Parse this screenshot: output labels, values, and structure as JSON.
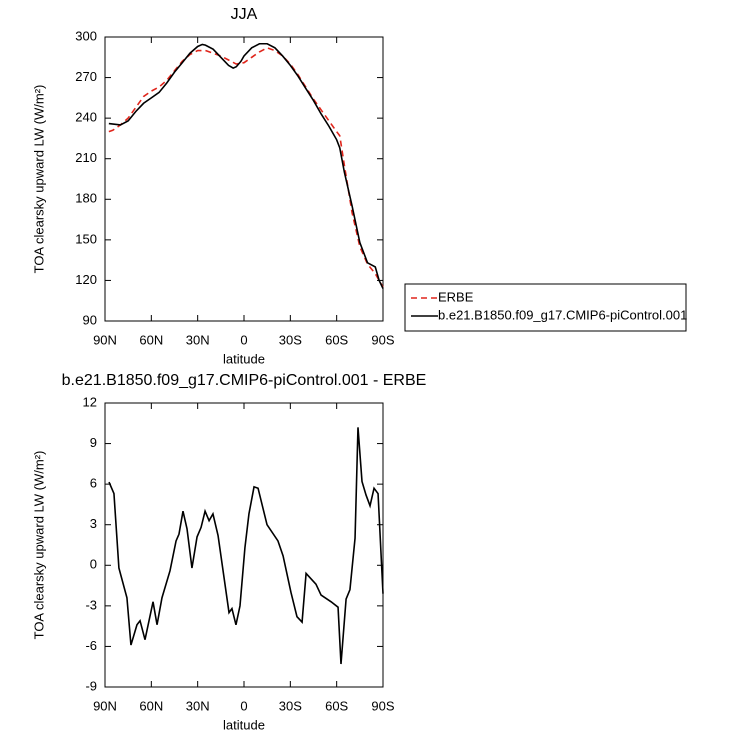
{
  "chart_data": [
    {
      "type": "line",
      "title": "JJA",
      "x_label": "latitude",
      "y_label": "TOA clearsky upward LW (W/m²)",
      "xlim": [
        90,
        -90
      ],
      "xticks": [
        {
          "value": 90,
          "label": "90N"
        },
        {
          "value": 60,
          "label": "60N"
        },
        {
          "value": 30,
          "label": "30N"
        },
        0,
        {
          "value": -30,
          "label": "30S"
        },
        {
          "value": -60,
          "label": "60S"
        },
        {
          "value": -90,
          "label": "90S"
        }
      ],
      "ylim": [
        90,
        300
      ],
      "yticks": [
        90,
        120,
        150,
        180,
        210,
        240,
        270,
        300
      ],
      "legend": "right",
      "series": [
        {
          "name": "ERBE",
          "color": "#e0251b",
          "dash": true,
          "x": [
            87.5,
            85,
            80,
            75,
            70,
            65,
            60,
            55,
            50,
            45,
            40,
            35,
            30,
            25,
            20,
            15,
            10,
            5,
            0,
            -5,
            -10,
            -15,
            -20,
            -25,
            -30,
            -35,
            -40,
            -45,
            -50,
            -55,
            -60,
            -62,
            -65,
            -70,
            -75,
            -80,
            -85,
            -90
          ],
          "values": [
            230,
            231,
            235,
            240,
            248,
            256,
            260,
            263,
            268,
            275,
            282,
            287,
            290,
            290,
            288,
            286,
            283,
            280,
            281,
            285,
            289,
            292,
            290,
            286,
            280,
            272,
            263,
            254,
            246,
            238,
            230,
            227,
            205,
            170,
            145,
            132,
            125,
            115
          ]
        },
        {
          "name": "b.e21.B1850.f09_g17.CMIP6-piControl.001",
          "color": "#000000",
          "dash": false,
          "x": [
            87.5,
            80,
            75,
            70,
            65,
            60,
            55,
            50,
            45,
            40,
            35,
            30,
            27,
            25,
            20,
            15,
            10,
            7,
            5,
            2,
            0,
            -5,
            -10,
            -15,
            -20,
            -25,
            -30,
            -35,
            -40,
            -45,
            -50,
            -55,
            -60,
            -62,
            -65,
            -70,
            -75,
            -80,
            -85,
            -87.5,
            -90
          ],
          "values": [
            236,
            235,
            238,
            245,
            251,
            255,
            259,
            266,
            274,
            281,
            288,
            293,
            294.5,
            294,
            291,
            285,
            279,
            277,
            278,
            282,
            286,
            292,
            295,
            295,
            292,
            286,
            279,
            271,
            262,
            253,
            243,
            234,
            224,
            218,
            200,
            175,
            148,
            133,
            130,
            120,
            114
          ]
        }
      ]
    },
    {
      "type": "line",
      "title": "b.e21.B1850.f09_g17.CMIP6-piControl.001 - ERBE",
      "x_label": "latitude",
      "y_label": "TOA clearsky upward LW (W/m²)",
      "xlim": [
        90,
        -90
      ],
      "xticks": [
        {
          "value": 90,
          "label": "90N"
        },
        {
          "value": 60,
          "label": "60N"
        },
        {
          "value": 30,
          "label": "30N"
        },
        0,
        {
          "value": -30,
          "label": "30S"
        },
        {
          "value": -60,
          "label": "60S"
        },
        {
          "value": -90,
          "label": "90S"
        }
      ],
      "ylim": [
        -9,
        12
      ],
      "yticks": [
        -9,
        -6,
        -3,
        0,
        3,
        6,
        9,
        12
      ],
      "series": [
        {
          "color": "#000000",
          "x": [
            87.4,
            84.2,
            81,
            75.8,
            73.2,
            69.3,
            67.3,
            64.1,
            58.9,
            56.3,
            53.1,
            47.9,
            44,
            42.1,
            39.5,
            36.9,
            33.7,
            30.4,
            27.8,
            25.2,
            22.6,
            20.1,
            16.8,
            9.7,
            7.8,
            5.2,
            2.6,
            -0.6,
            -3.2,
            -6.5,
            -9.1,
            -14.9,
            -22,
            -25.3,
            -30.4,
            -34.3,
            -37.6,
            -40.2,
            -46.6,
            -49.9,
            -56.4,
            -60.9,
            -62.8,
            -66.1,
            -68.6,
            -71.9,
            -73.8,
            -76.4,
            -79,
            -81.6,
            -84.2,
            -86.8,
            -90
          ],
          "values": [
            6.15,
            5.3,
            -0.2,
            -2.4,
            -5.9,
            -4.4,
            -4.1,
            -5.5,
            -2.7,
            -4.4,
            -2.4,
            -0.4,
            1.8,
            2.3,
            4.0,
            2.7,
            -0.2,
            2.1,
            2.8,
            4.0,
            3.3,
            3.8,
            2.2,
            -3.5,
            -3.2,
            -4.4,
            -3.0,
            1.3,
            3.8,
            5.8,
            5.7,
            3.0,
            1.8,
            0.7,
            -2.0,
            -3.8,
            -4.2,
            -0.6,
            -1.4,
            -2.2,
            -2.7,
            -3.1,
            -7.3,
            -2.5,
            -1.8,
            2.0,
            10.2,
            6.2,
            5.2,
            4.4,
            5.7,
            5.3,
            -2.1
          ]
        }
      ]
    }
  ]
}
